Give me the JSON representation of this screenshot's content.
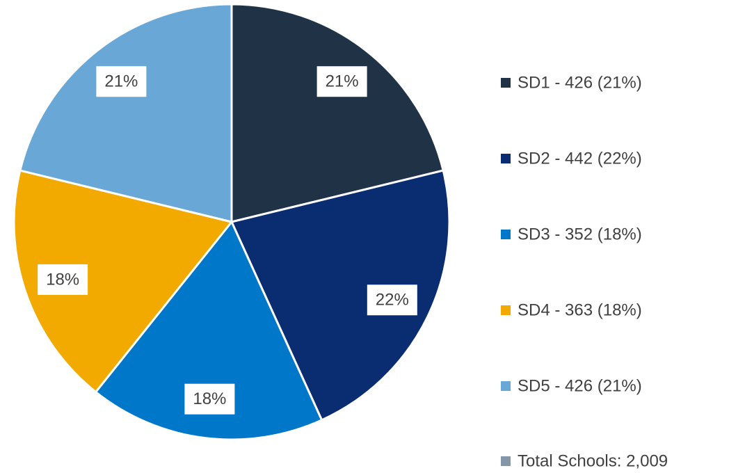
{
  "chart_data": {
    "type": "pie",
    "categories": [
      "SD1 - 426 (21%)",
      "SD2 - 442 (22%)",
      "SD3 - 352 (18%)",
      "SD4 - 363 (18%)",
      "SD5 - 426 (21%)"
    ],
    "values": [
      426,
      442,
      352,
      363,
      426
    ],
    "value_labels": [
      "21%",
      "22%",
      "18%",
      "18%",
      "21%"
    ],
    "colors": [
      "#203346",
      "#0a2d71",
      "#0077c8",
      "#f2a900",
      "#69a8d6"
    ],
    "total": {
      "label": "Total Schools: 2,009",
      "color": "#8497a8"
    },
    "legend": "right"
  }
}
